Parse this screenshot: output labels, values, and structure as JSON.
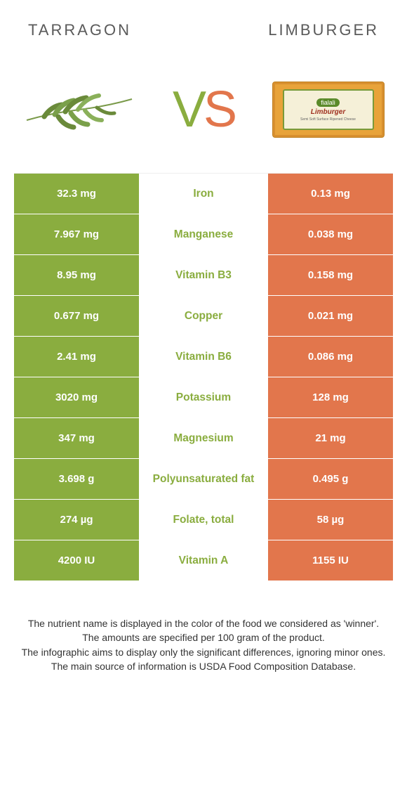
{
  "header": {
    "left_title": "TARRAGON",
    "right_title": "LIMBURGER"
  },
  "vs": {
    "v": "V",
    "s": "S"
  },
  "colors": {
    "left": "#8aad3f",
    "right": "#e2764c",
    "text": "#333333"
  },
  "table": {
    "type": "comparison-table",
    "rows": [
      {
        "left": "32.3 mg",
        "label": "Iron",
        "right": "0.13 mg",
        "winner": "left"
      },
      {
        "left": "7.967 mg",
        "label": "Manganese",
        "right": "0.038 mg",
        "winner": "left"
      },
      {
        "left": "8.95 mg",
        "label": "Vitamin B3",
        "right": "0.158 mg",
        "winner": "left"
      },
      {
        "left": "0.677 mg",
        "label": "Copper",
        "right": "0.021 mg",
        "winner": "left"
      },
      {
        "left": "2.41 mg",
        "label": "Vitamin B6",
        "right": "0.086 mg",
        "winner": "left"
      },
      {
        "left": "3020 mg",
        "label": "Potassium",
        "right": "128 mg",
        "winner": "left"
      },
      {
        "left": "347 mg",
        "label": "Magnesium",
        "right": "21 mg",
        "winner": "left"
      },
      {
        "left": "3.698 g",
        "label": "Polyunsaturated fat",
        "right": "0.495 g",
        "winner": "left"
      },
      {
        "left": "274 µg",
        "label": "Folate, total",
        "right": "58 µg",
        "winner": "left"
      },
      {
        "left": "4200 IU",
        "label": "Vitamin A",
        "right": "1155 IU",
        "winner": "left"
      }
    ]
  },
  "footer": {
    "line1": "The nutrient name is displayed in the color of the food we considered as 'winner'.",
    "line2": "The amounts are specified per 100 gram of the product.",
    "line3": "The infographic aims to display only the significant differences, ignoring minor ones.",
    "line4": "The main source of information is USDA Food Composition Database."
  },
  "limburger_box": {
    "brand": "fialali",
    "name": "Limburger",
    "sub": "Semi Soft Surface Ripened Cheese"
  }
}
